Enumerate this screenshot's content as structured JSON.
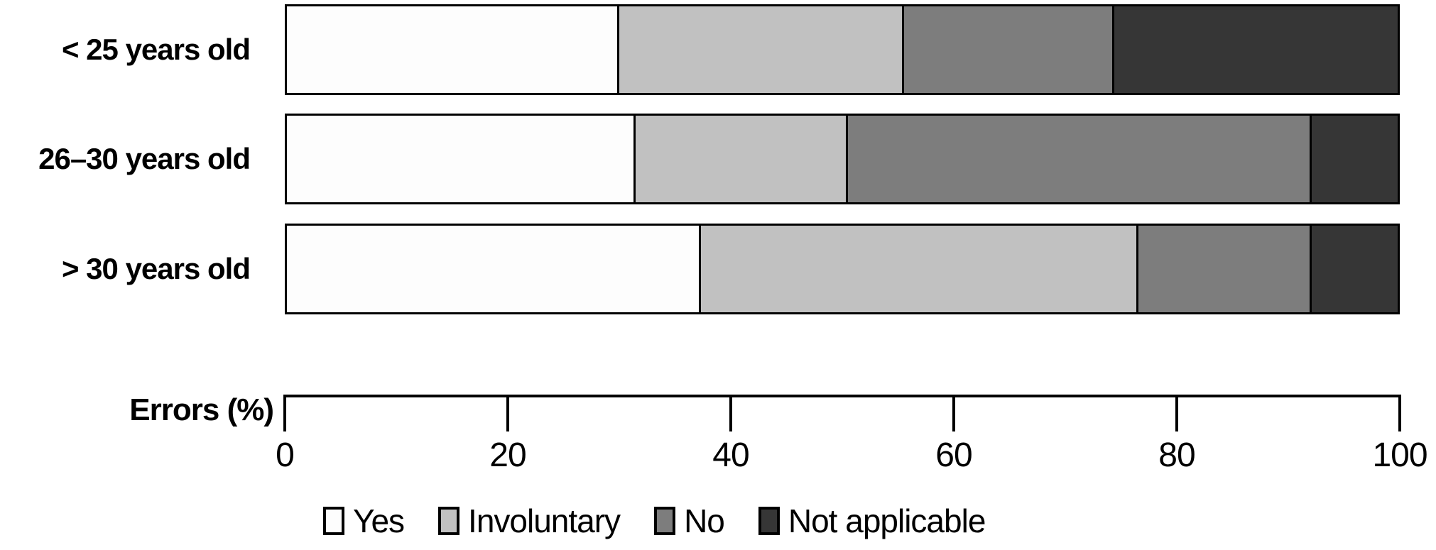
{
  "chart_data": {
    "type": "bar",
    "orientation": "horizontal-stacked",
    "title": "",
    "categories": [
      "< 25 years old",
      "26–30 years old",
      "> 30 years old"
    ],
    "series": [
      {
        "name": "Yes",
        "color": "#fdfdfd",
        "values": [
          29.7,
          31.2,
          37.1
        ]
      },
      {
        "name": "Involuntary",
        "color": "#c1c1c1",
        "values": [
          25.7,
          19.1,
          39.4
        ]
      },
      {
        "name": "No",
        "color": "#7d7d7d",
        "values": [
          18.9,
          41.8,
          15.6
        ]
      },
      {
        "name": "Not applicable",
        "color": "#363636",
        "values": [
          25.7,
          7.9,
          7.9
        ]
      }
    ],
    "xlabel": "Errors (%)",
    "xlim": [
      0,
      100
    ],
    "xticks": [
      0,
      20,
      40,
      60,
      80,
      100
    ],
    "grid": false,
    "legend_position": "bottom",
    "bar_border_color": "#000000"
  },
  "axis": {
    "title": "Errors (%)"
  }
}
